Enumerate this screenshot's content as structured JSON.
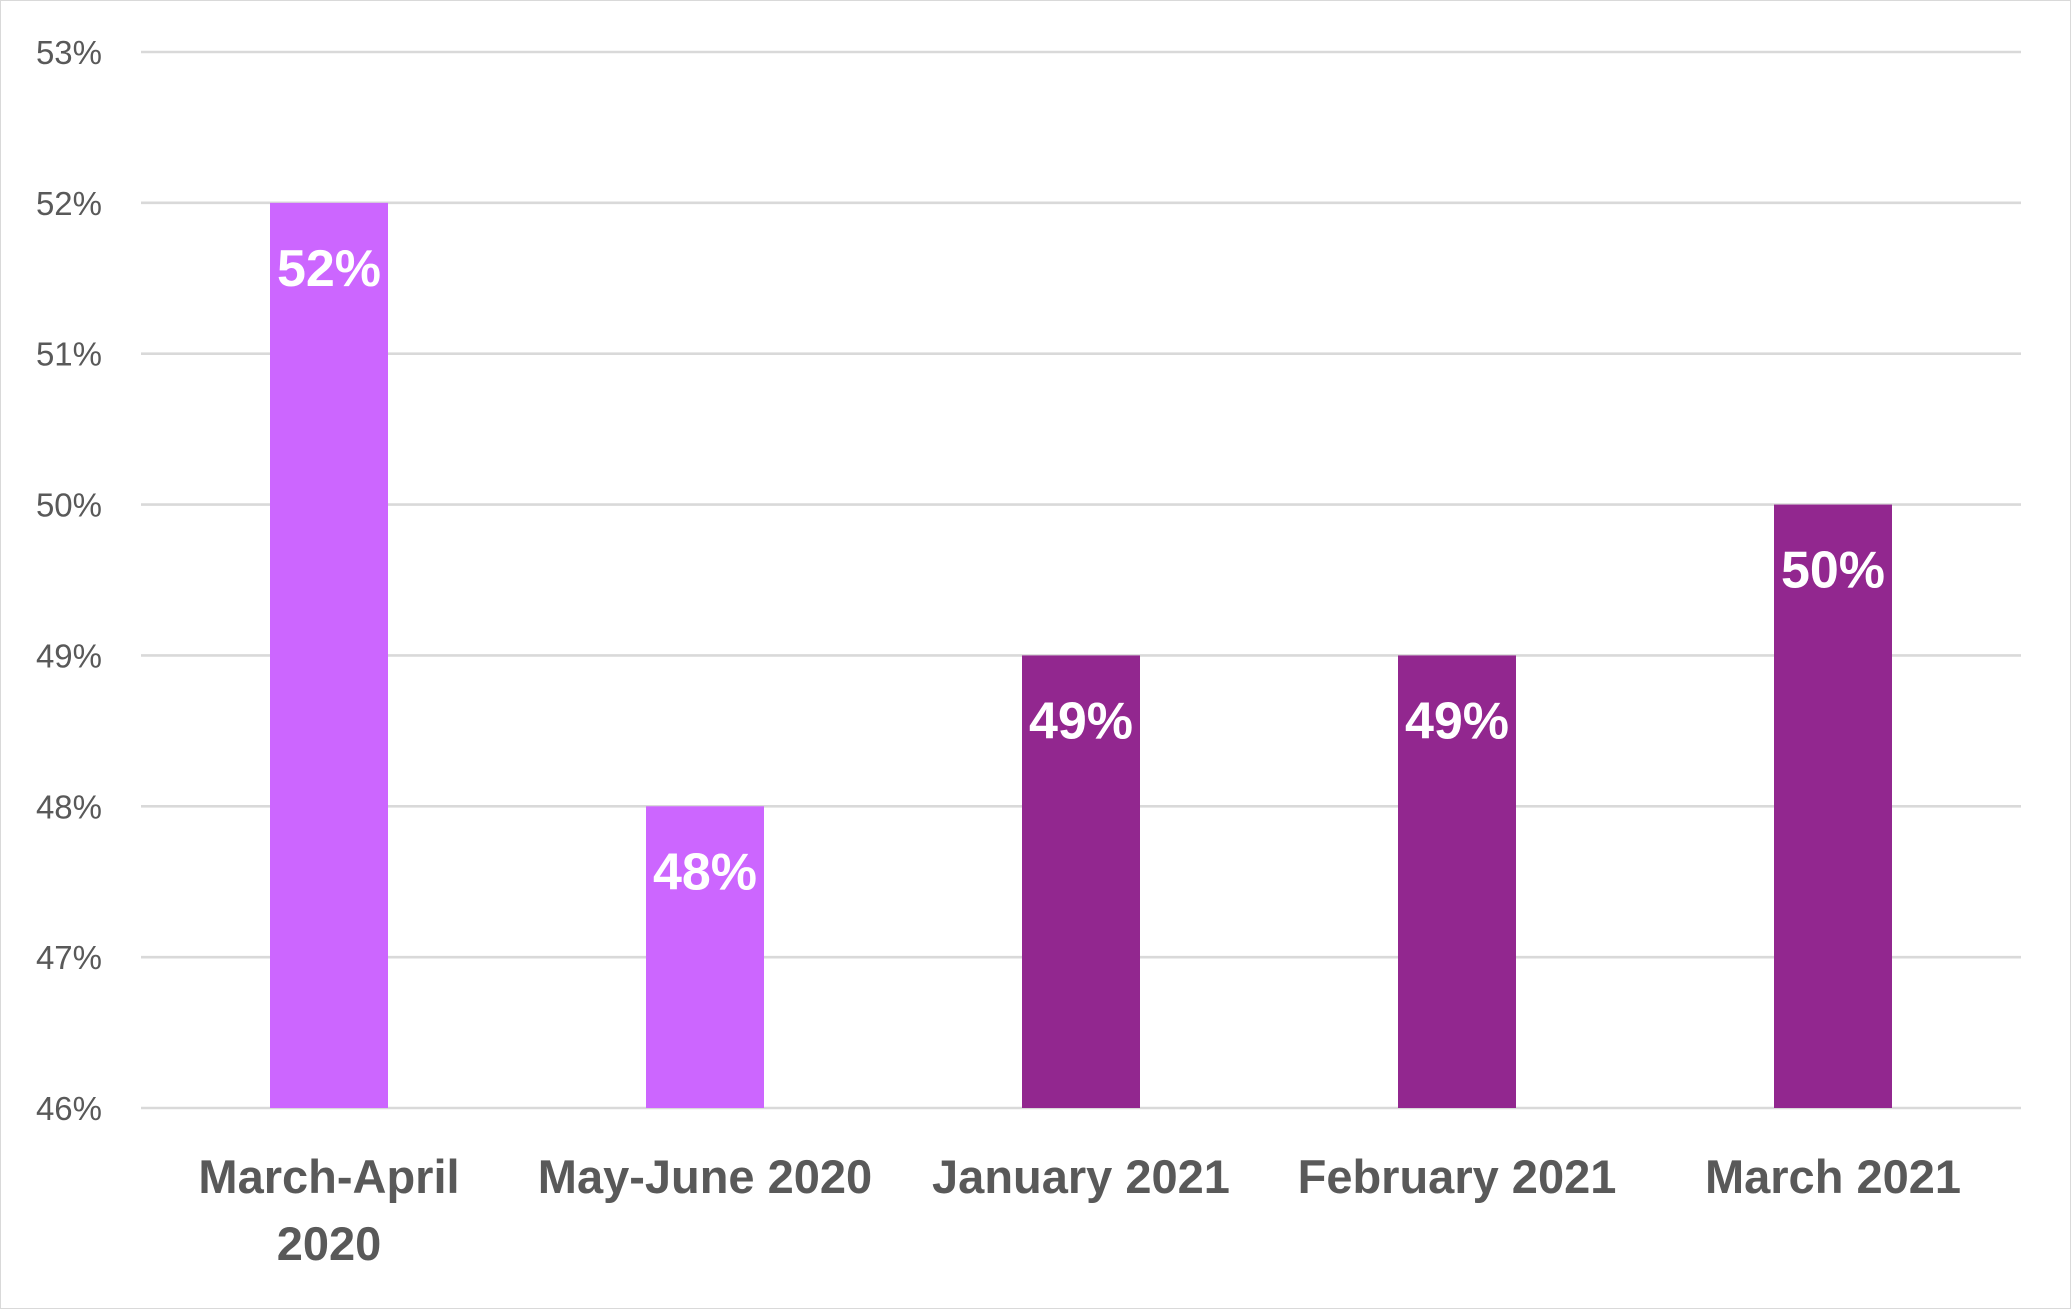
{
  "chart_data": {
    "type": "bar",
    "categories": [
      [
        "March-April",
        "2020"
      ],
      [
        "May-June 2020"
      ],
      [
        "January 2021"
      ],
      [
        "February 2021"
      ],
      [
        "March 2021"
      ]
    ],
    "values": [
      52,
      48,
      49,
      49,
      50
    ],
    "data_labels": [
      "52%",
      "48%",
      "49%",
      "49%",
      "50%"
    ],
    "bar_colors": [
      "#cc66ff",
      "#cc66ff",
      "#92278f",
      "#92278f",
      "#92278f"
    ],
    "ylim": [
      46,
      53
    ],
    "yticks": [
      46,
      47,
      48,
      49,
      50,
      51,
      52,
      53
    ],
    "ytick_labels": [
      "46%",
      "47%",
      "48%",
      "49%",
      "50%",
      "51%",
      "52%",
      "53%"
    ],
    "grid": true,
    "legend": "none",
    "title": "",
    "xlabel": "",
    "ylabel": "",
    "gridline_color": "#d9d9d9",
    "axis_text_color": "#595959",
    "data_label_color": "#ffffff"
  }
}
